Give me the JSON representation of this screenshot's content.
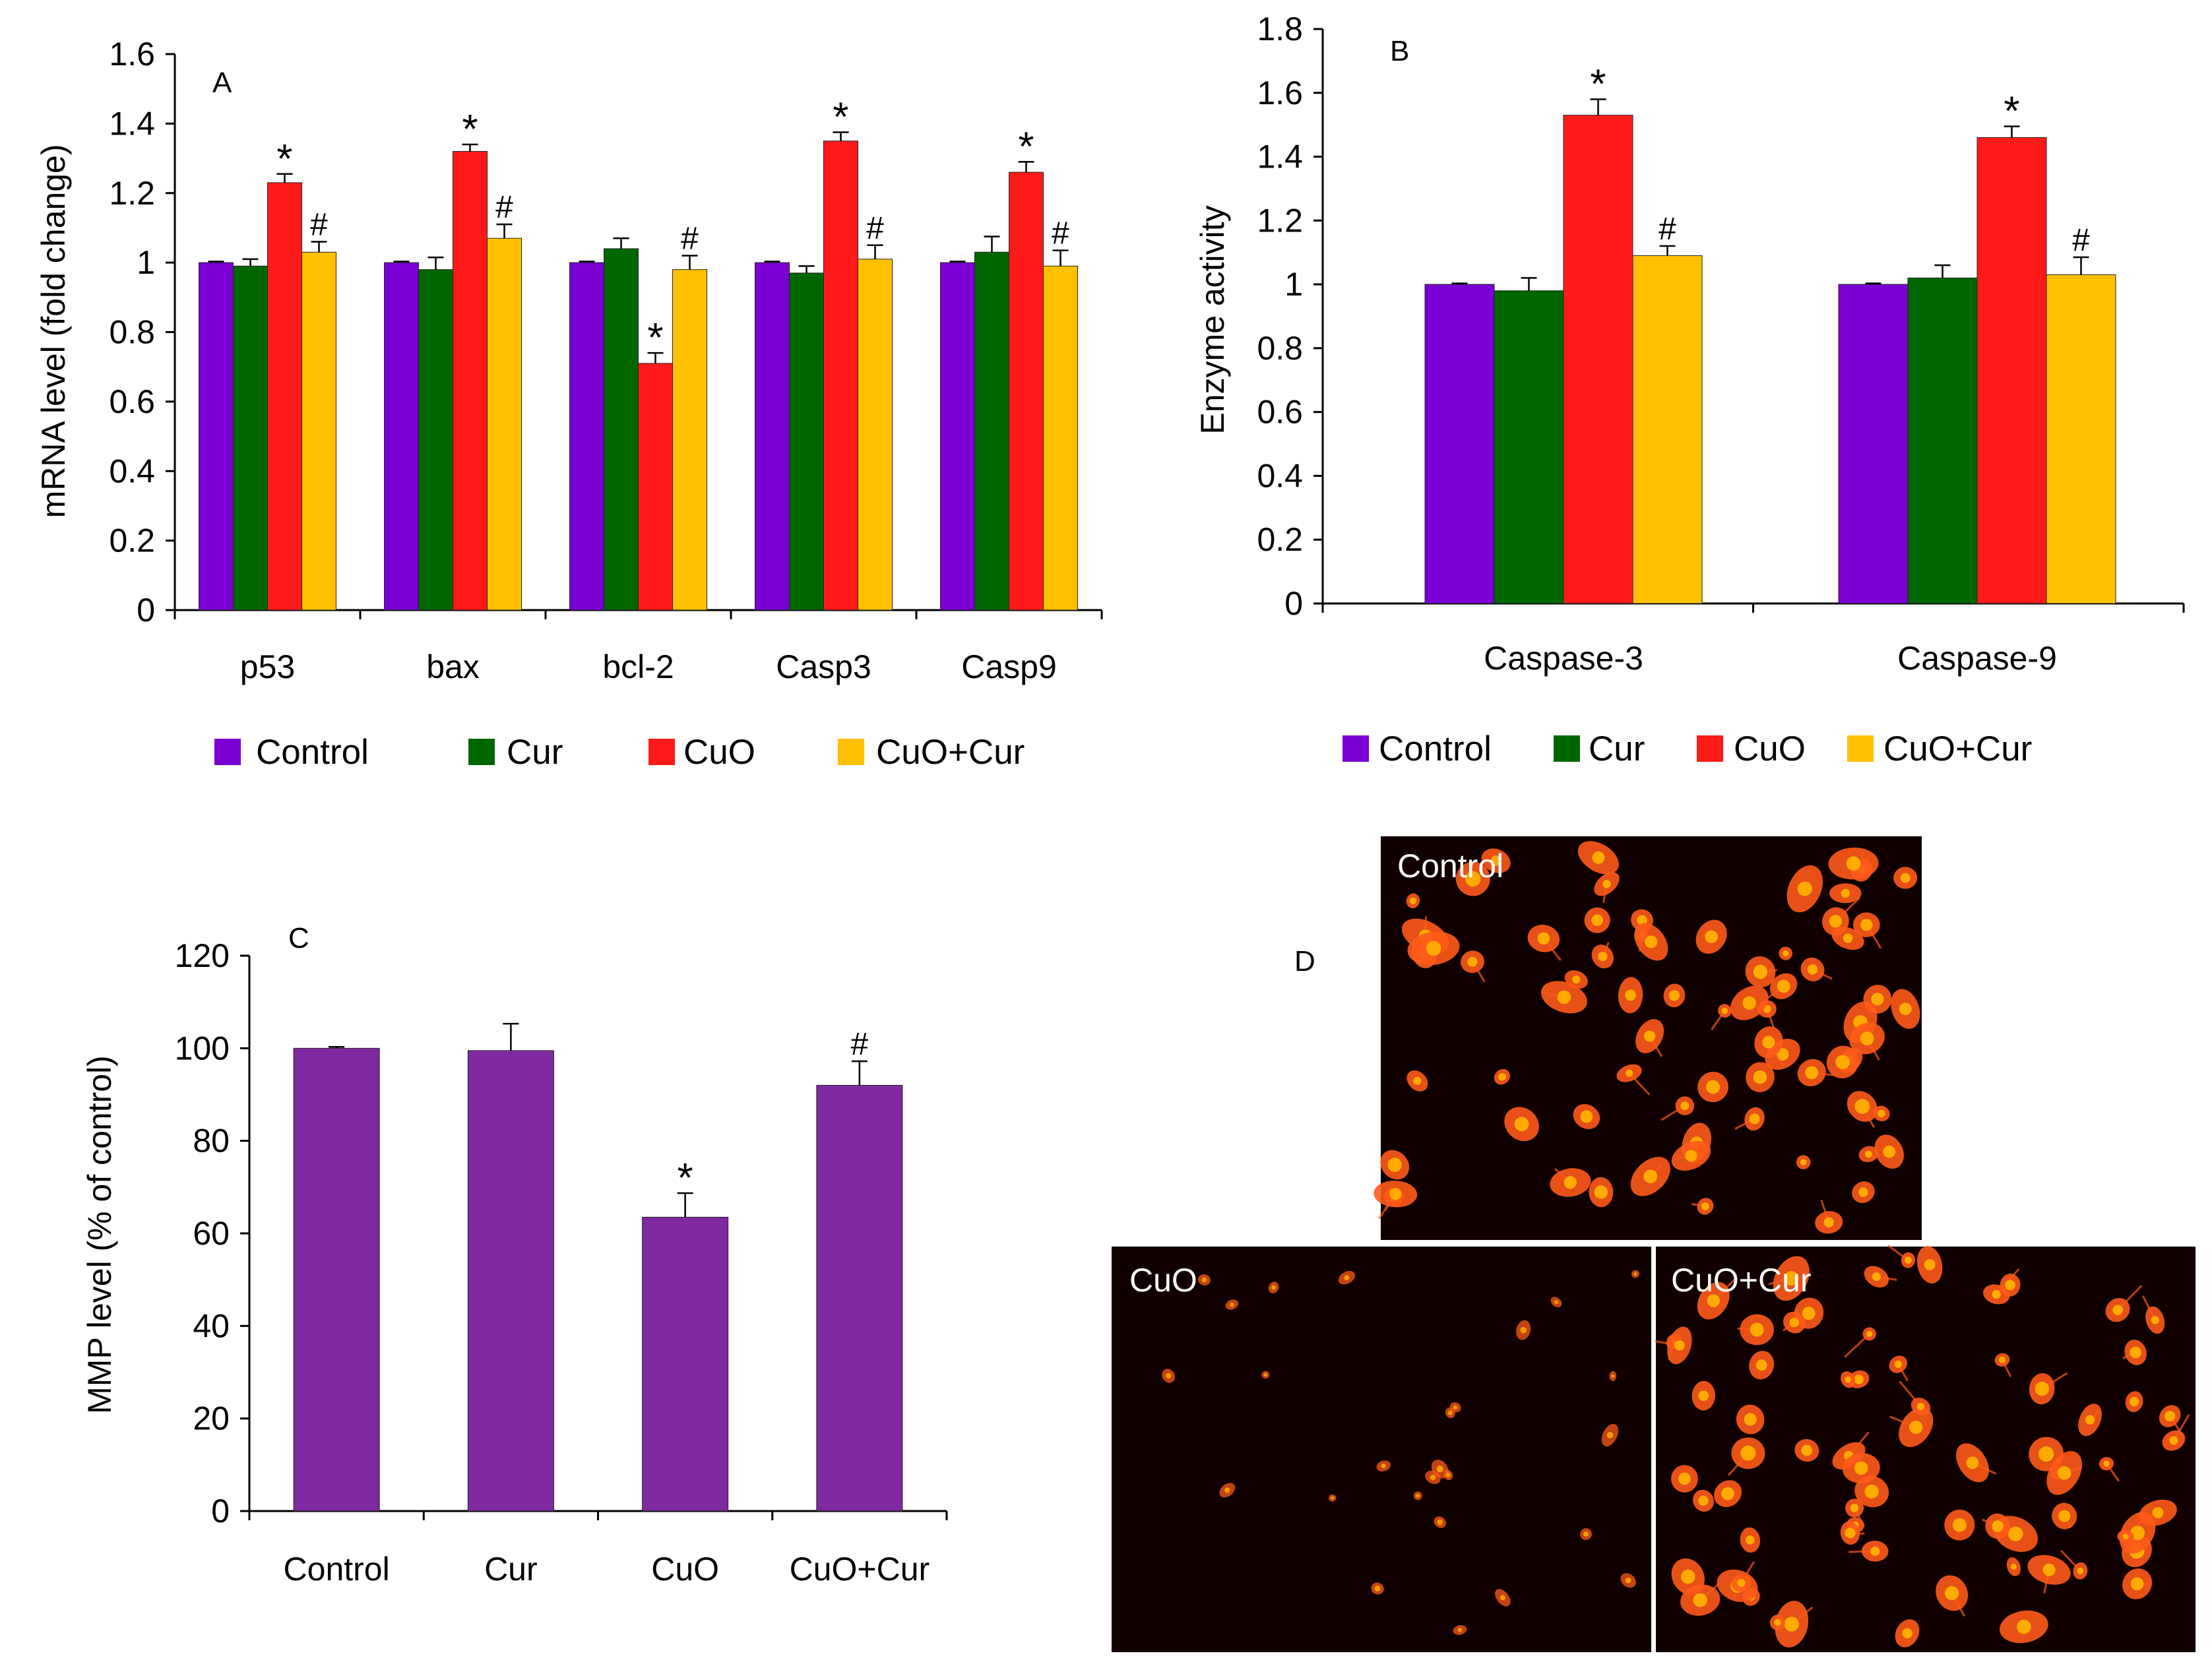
{
  "colors": {
    "control": "#7B00D4",
    "cur": "#006600",
    "cuo": "#FF1A1A",
    "cuo_cur": "#FFC000",
    "mmp": "#7F2AA0",
    "axis": "#000000",
    "micrograph_bg": "#110000",
    "cell": "#ff5a1a",
    "cell_core": "#ffb000"
  },
  "legend": [
    "Control",
    "Cur",
    "CuO",
    "CuO+Cur"
  ],
  "chart_data": [
    {
      "panel": "A",
      "type": "bar",
      "ylabel": "mRNA level (fold change)",
      "ylim": [
        0,
        1.6
      ],
      "yticks": [
        "0",
        "0.2",
        "0.4",
        "0.6",
        "0.8",
        "1",
        "1.2",
        "1.4",
        "1.6"
      ],
      "categories": [
        "p53",
        "bax",
        "bcl-2",
        "Casp3",
        "Casp9"
      ],
      "series": [
        {
          "name": "Control",
          "values": [
            1.0,
            1.0,
            1.0,
            1.0,
            1.0
          ],
          "errors": [
            0.003,
            0.003,
            0.003,
            0.003,
            0.003
          ],
          "marks": [
            "",
            "",
            "",
            "",
            ""
          ]
        },
        {
          "name": "Cur",
          "values": [
            0.99,
            0.98,
            1.04,
            0.97,
            1.03
          ],
          "errors": [
            0.02,
            0.035,
            0.03,
            0.02,
            0.045
          ],
          "marks": [
            "",
            "",
            "",
            "",
            ""
          ]
        },
        {
          "name": "CuO",
          "values": [
            1.23,
            1.32,
            0.71,
            1.35,
            1.26
          ],
          "errors": [
            0.025,
            0.02,
            0.03,
            0.025,
            0.03
          ],
          "marks": [
            "*",
            "*",
            "*",
            "*",
            "*"
          ]
        },
        {
          "name": "CuO+Cur",
          "values": [
            1.03,
            1.07,
            0.98,
            1.01,
            0.99
          ],
          "errors": [
            0.03,
            0.04,
            0.04,
            0.04,
            0.045
          ],
          "marks": [
            "#",
            "#",
            "#",
            "#",
            "#"
          ]
        }
      ]
    },
    {
      "panel": "B",
      "type": "bar",
      "ylabel": "Enzyme activity",
      "ylim": [
        0,
        1.8
      ],
      "yticks": [
        "0",
        "0.2",
        "0.4",
        "0.6",
        "0.8",
        "1",
        "1.2",
        "1.4",
        "1.6",
        "1.8"
      ],
      "categories": [
        "Caspase-3",
        "Caspase-9"
      ],
      "series": [
        {
          "name": "Control",
          "values": [
            1.0,
            1.0
          ],
          "errors": [
            0.003,
            0.003
          ],
          "marks": [
            "",
            ""
          ]
        },
        {
          "name": "Cur",
          "values": [
            0.98,
            1.02
          ],
          "errors": [
            0.04,
            0.04
          ],
          "marks": [
            "",
            ""
          ]
        },
        {
          "name": "CuO",
          "values": [
            1.53,
            1.46
          ],
          "errors": [
            0.05,
            0.035
          ],
          "marks": [
            "*",
            "*"
          ]
        },
        {
          "name": "CuO+Cur",
          "values": [
            1.09,
            1.03
          ],
          "errors": [
            0.03,
            0.055
          ],
          "marks": [
            "#",
            "#"
          ]
        }
      ]
    },
    {
      "panel": "C",
      "type": "bar",
      "ylabel": "MMP level (% of control)",
      "ylim": [
        0,
        120
      ],
      "yticks": [
        "0",
        "20",
        "40",
        "60",
        "80",
        "100",
        "120"
      ],
      "categories": [
        "Control",
        "Cur",
        "CuO",
        "CuO+Cur"
      ],
      "series": [
        {
          "name": "MMP",
          "values": [
            100,
            99.5,
            63.5,
            92
          ],
          "errors": [
            0.3,
            5.8,
            5.2,
            5.2
          ],
          "marks": [
            "",
            "",
            "*",
            "#"
          ]
        }
      ]
    }
  ],
  "panel_d": {
    "label": "D",
    "images": [
      {
        "title": "Control",
        "density": "high",
        "brightness": "bright"
      },
      {
        "title": "CuO",
        "density": "low",
        "brightness": "dim"
      },
      {
        "title": "CuO+Cur",
        "density": "high",
        "brightness": "bright"
      }
    ]
  }
}
